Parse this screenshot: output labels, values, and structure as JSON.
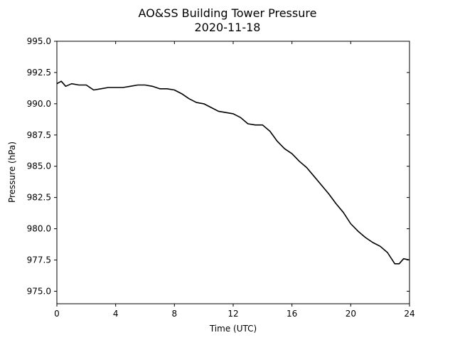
{
  "chart_data": {
    "type": "line",
    "title": "AO&SS Building Tower Pressure",
    "subtitle": "2020-11-18",
    "xlabel": "Time (UTC)",
    "ylabel": "Pressure (hPa)",
    "xlim": [
      0,
      24
    ],
    "ylim": [
      974.0,
      995.0
    ],
    "xticks": [
      0,
      4,
      8,
      12,
      16,
      20,
      24
    ],
    "yticks": [
      975.0,
      977.5,
      980.0,
      982.5,
      985.0,
      987.5,
      990.0,
      992.5,
      995.0
    ],
    "ytick_labels": [
      "975.0",
      "977.5",
      "980.0",
      "982.5",
      "985.0",
      "987.5",
      "990.0",
      "992.5",
      "995.0"
    ],
    "grid": false,
    "line_color": "#000000",
    "series": [
      {
        "x": [
          0.0,
          0.3,
          0.6,
          1.0,
          1.5,
          2.0,
          2.5,
          3.0,
          3.5,
          4.0,
          4.5,
          5.0,
          5.5,
          6.0,
          6.5,
          7.0,
          7.5,
          8.0,
          8.5,
          9.0,
          9.5,
          10.0,
          10.5,
          11.0,
          11.5,
          12.0,
          12.5,
          13.0,
          13.5,
          14.0,
          14.5,
          15.0,
          15.5,
          16.0,
          16.5,
          17.0,
          17.5,
          18.0,
          18.5,
          19.0,
          19.5,
          20.0,
          20.5,
          21.0,
          21.5,
          22.0,
          22.5,
          23.0,
          23.3,
          23.6,
          24.0
        ],
        "y": [
          991.6,
          991.8,
          991.4,
          991.6,
          991.5,
          991.5,
          991.1,
          991.2,
          991.3,
          991.3,
          991.3,
          991.4,
          991.5,
          991.5,
          991.4,
          991.2,
          991.2,
          991.1,
          990.8,
          990.4,
          990.1,
          990.0,
          989.7,
          989.4,
          989.3,
          989.2,
          988.9,
          988.4,
          988.3,
          988.3,
          987.8,
          987.0,
          986.4,
          986.0,
          985.4,
          984.9,
          984.2,
          983.5,
          982.8,
          982.0,
          981.3,
          980.4,
          979.8,
          979.3,
          978.9,
          978.6,
          978.1,
          977.2,
          977.2,
          977.6,
          977.5
        ]
      }
    ]
  }
}
